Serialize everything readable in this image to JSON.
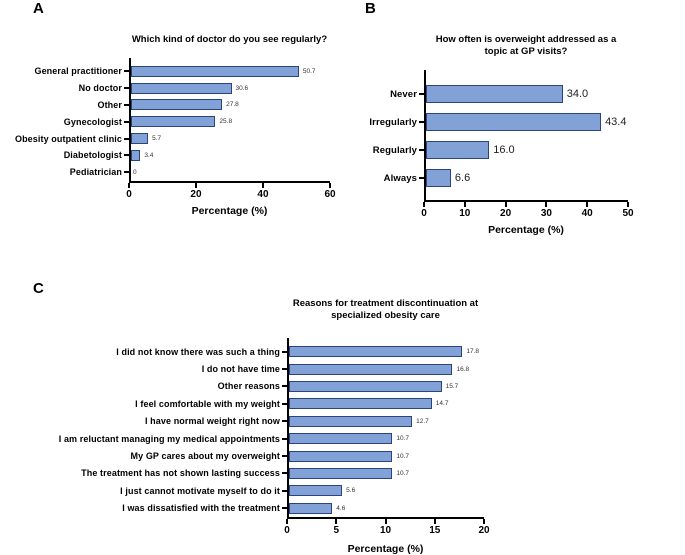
{
  "figure": {
    "background": "#ffffff",
    "style": {
      "bar_fill": "#81a1d7",
      "bar_border": "#2a4480",
      "axis_color": "#000000"
    }
  },
  "chart_data": [
    {
      "type": "bar",
      "orientation": "horizontal",
      "panel_letter": "A",
      "title": "Which kind of doctor do you see regularly?",
      "xlabel": "Percentage (%)",
      "categories": [
        "General practitioner",
        "No doctor",
        "Other",
        "Gynecologist",
        "Obesity outpatient clinic",
        "Diabetologist",
        "Pediatrician"
      ],
      "values": [
        50.7,
        30.6,
        27.8,
        25.8,
        5.7,
        3.4,
        0
      ],
      "value_labels": [
        "50.7",
        "30.6",
        "27.8",
        "25.8",
        "5.7",
        "3.4",
        "0"
      ],
      "xlim": [
        0,
        60
      ],
      "xticks": [
        0,
        20,
        40,
        60
      ],
      "grid": false,
      "legend": "none"
    },
    {
      "type": "bar",
      "orientation": "horizontal",
      "panel_letter": "B",
      "title": "How often is overweight addressed as a topic at GP visits?",
      "xlabel": "Percentage (%)",
      "categories": [
        "Never",
        "Irregularly",
        "Regularly",
        "Always"
      ],
      "values": [
        34.0,
        43.4,
        16.0,
        6.6
      ],
      "value_labels": [
        "34.0",
        "43.4",
        "16.0",
        "6.6"
      ],
      "xlim": [
        0,
        50
      ],
      "xticks": [
        0,
        10,
        20,
        30,
        40,
        50
      ],
      "grid": false,
      "legend": "none"
    },
    {
      "type": "bar",
      "orientation": "horizontal",
      "panel_letter": "C",
      "title": "Reasons for treatment discontinuation at\nspecialized obesity care",
      "xlabel": "Percentage (%)",
      "categories": [
        "I did not know there was such a thing",
        "I do not have time",
        "Other reasons",
        "I feel comfortable with my weight",
        "I have normal weight right now",
        "I am reluctant managing my medical appointments",
        "My GP cares about my overweight",
        "The treatment has not shown lasting success",
        "I just cannot motivate myself to do it",
        "I was dissatisfied with the treatment"
      ],
      "values": [
        17.8,
        16.8,
        15.7,
        14.7,
        12.7,
        10.7,
        10.7,
        10.7,
        5.6,
        4.6
      ],
      "value_labels": [
        "17.8",
        "16.8",
        "15.7",
        "14.7",
        "12.7",
        "10.7",
        "10.7",
        "10.7",
        "5.6",
        "4.6"
      ],
      "xlim": [
        0,
        20
      ],
      "xticks": [
        0,
        5,
        10,
        15,
        20
      ],
      "grid": false,
      "legend": "none"
    }
  ]
}
